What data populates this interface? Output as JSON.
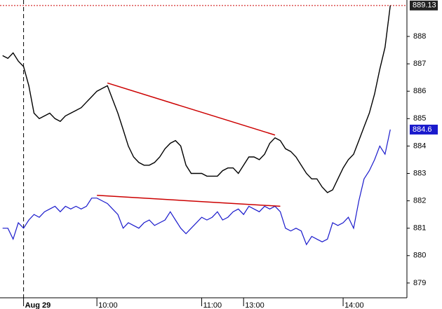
{
  "chart_data": {
    "type": "line",
    "categories": [
      null,
      null,
      null,
      null,
      "Aug 29",
      null,
      null,
      null,
      null,
      null,
      null,
      null,
      null,
      null,
      null,
      null,
      null,
      null,
      "10:00",
      null,
      null,
      null,
      null,
      null,
      null,
      null,
      null,
      null,
      null,
      null,
      null,
      null,
      null,
      null,
      null,
      null,
      null,
      null,
      "11:00",
      null,
      null,
      null,
      null,
      null,
      null,
      null,
      "13:00",
      null,
      null,
      null,
      null,
      null,
      null,
      null,
      null,
      null,
      null,
      null,
      null,
      null,
      null,
      null,
      null,
      null,
      null,
      "14:00",
      null,
      null,
      null,
      null,
      null,
      null,
      null,
      null,
      null
    ],
    "series": [
      {
        "color": "#000000",
        "values": [
          887.3,
          887.2,
          887.4,
          887.1,
          886.9,
          886.2,
          885.2,
          885.0,
          885.1,
          885.2,
          885.0,
          884.9,
          885.1,
          885.2,
          885.3,
          885.4,
          885.6,
          885.8,
          886.0,
          886.1,
          886.2,
          885.7,
          885.2,
          884.6,
          884.0,
          883.6,
          883.4,
          883.3,
          883.3,
          883.4,
          883.6,
          883.9,
          884.1,
          884.2,
          884.0,
          883.3,
          883.0,
          883.0,
          883.0,
          882.9,
          882.9,
          882.9,
          883.1,
          883.2,
          883.2,
          883.0,
          883.3,
          883.6,
          883.6,
          883.5,
          883.7,
          884.1,
          884.3,
          884.2,
          883.9,
          883.8,
          883.6,
          883.3,
          883.0,
          882.8,
          882.8,
          882.5,
          882.3,
          882.4,
          882.8,
          883.2,
          883.5,
          883.7,
          884.2,
          884.7,
          885.2,
          885.9,
          886.8,
          887.6,
          889.13
        ]
      },
      {
        "color": "#1a1acc",
        "values": [
          881.0,
          881.0,
          880.6,
          881.2,
          881.0,
          881.3,
          881.5,
          881.4,
          881.6,
          881.7,
          881.8,
          881.6,
          881.8,
          881.7,
          881.8,
          881.7,
          881.8,
          882.1,
          882.1,
          882.0,
          881.9,
          881.7,
          881.5,
          881.0,
          881.2,
          881.1,
          881.0,
          881.2,
          881.3,
          881.1,
          881.2,
          881.3,
          881.6,
          881.3,
          881.0,
          880.8,
          881.0,
          881.2,
          881.4,
          881.3,
          881.4,
          881.6,
          881.3,
          881.4,
          881.6,
          881.7,
          881.5,
          881.8,
          881.7,
          881.6,
          881.8,
          881.7,
          881.8,
          881.6,
          881.0,
          880.9,
          881.0,
          880.9,
          880.4,
          880.7,
          880.6,
          880.5,
          880.6,
          881.2,
          881.1,
          881.2,
          881.4,
          881.0,
          882.0,
          882.8,
          883.1,
          883.5,
          884.0,
          883.7,
          884.6
        ]
      }
    ],
    "trendlines": [
      {
        "color": "#cc0000",
        "x": [
          20,
          52
        ],
        "values": [
          886.3,
          884.4
        ]
      },
      {
        "color": "#cc0000",
        "x": [
          18,
          53
        ],
        "values": [
          882.2,
          881.8
        ]
      }
    ],
    "ylim": [
      878.46,
      889.33
    ],
    "yticks": [
      879,
      880,
      881,
      882,
      883,
      884,
      885,
      886,
      887,
      888
    ],
    "grid": false
  }
}
